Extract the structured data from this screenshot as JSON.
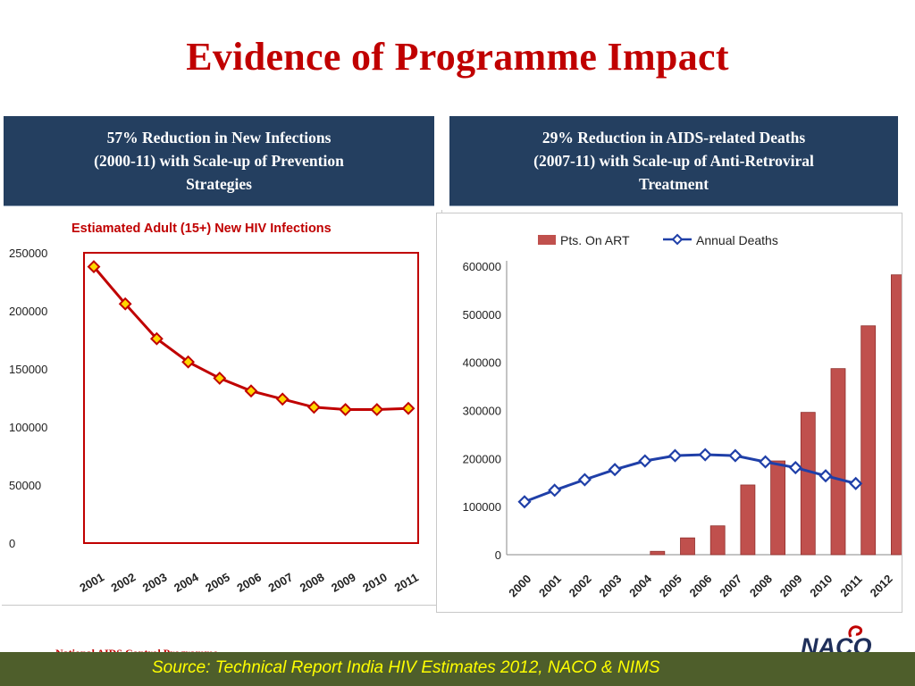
{
  "title": "Evidence of Programme Impact",
  "left_panel": {
    "heading_lines": [
      "57% Reduction in New Infections",
      "(2000-11) with Scale-up of Prevention",
      "Strategies"
    ]
  },
  "right_panel": {
    "heading_lines": [
      "29% Reduction in AIDS-related Deaths",
      "(2007-11) with Scale-up of Anti-Retroviral",
      "Treatment"
    ]
  },
  "chart_data": [
    {
      "type": "line",
      "title": "Estiamated Adult (15+) New HIV Infections",
      "categories": [
        "2001",
        "2002",
        "2003",
        "2004",
        "2005",
        "2006",
        "2007",
        "2008",
        "2009",
        "2010",
        "2011"
      ],
      "series": [
        {
          "values": [
            238000,
            206000,
            176000,
            156000,
            142000,
            131000,
            124000,
            117000,
            115000,
            115000,
            116000
          ]
        }
      ],
      "ylim": [
        0,
        250000
      ],
      "yticks": [
        0,
        50000,
        100000,
        150000,
        200000,
        250000
      ],
      "grid": false,
      "colors": {
        "line": "#c00000",
        "marker_fill": "#ffd700",
        "frame": "#c00000"
      }
    },
    {
      "type": "bar",
      "categories": [
        "2000",
        "2001",
        "2002",
        "2003",
        "2004",
        "2005",
        "2006",
        "2007",
        "2008",
        "2009",
        "2010",
        "2011",
        "2012"
      ],
      "series": [
        {
          "name": "Pts. On ART",
          "kind": "bar",
          "values": [
            0,
            0,
            0,
            0,
            7000,
            35000,
            60000,
            145000,
            195000,
            296000,
            387000,
            476000,
            582000
          ]
        },
        {
          "name": "Annual Deaths",
          "kind": "line",
          "values": [
            110000,
            134000,
            156000,
            177000,
            195000,
            206000,
            208000,
            206000,
            193000,
            181000,
            164000,
            148000,
            null
          ]
        }
      ],
      "ylim": [
        0,
        600000
      ],
      "yticks": [
        0,
        100000,
        200000,
        300000,
        400000,
        500000,
        600000
      ],
      "legend": "top",
      "grid": false,
      "colors": {
        "bar": "#c0504d",
        "line": "#1f3fa8"
      }
    }
  ],
  "footer": {
    "org": "National AIDS Control Programme",
    "source": "Source: Technical Report India HIV Estimates 2012, NACO & NIMS",
    "logo_text": "NACO"
  }
}
